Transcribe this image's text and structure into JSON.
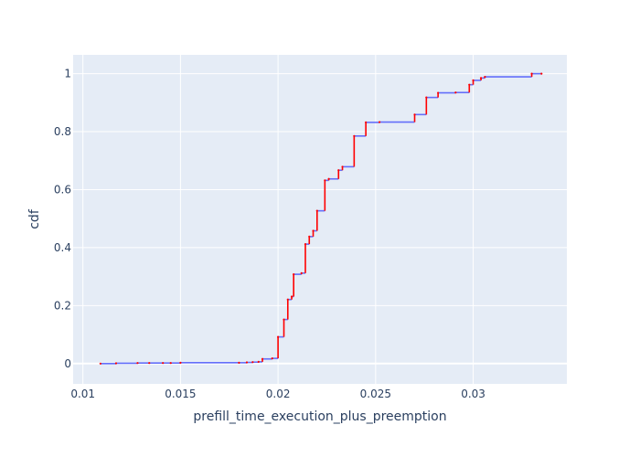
{
  "chart_data": {
    "type": "line",
    "title": "",
    "xlabel": "prefill_time_execution_plus_preemption",
    "ylabel": "cdf",
    "xlim": [
      0.0095,
      0.0348
    ],
    "ylim": [
      -0.07,
      1.065
    ],
    "x_ticks": [
      0.01,
      0.015,
      0.02,
      0.025,
      0.03
    ],
    "x_tick_labels": [
      "0.01",
      "0.015",
      "0.02",
      "0.025",
      "0.03"
    ],
    "y_ticks": [
      0,
      0.2,
      0.4,
      0.6,
      0.8,
      1
    ],
    "y_tick_labels": [
      "0",
      "0.2",
      "0.4",
      "0.6",
      "0.8",
      "1"
    ],
    "grid": true,
    "background": "#e5ecf6",
    "series": [
      {
        "line_type": "step",
        "color": "#636efa",
        "jump_color": "#ff0000",
        "x": [
          0.0109,
          0.0117,
          0.0128,
          0.0134,
          0.0141,
          0.0145,
          0.015,
          0.018,
          0.0184,
          0.0187,
          0.019,
          0.0192,
          0.0197,
          0.02,
          0.0203,
          0.0205,
          0.0207,
          0.0208,
          0.0212,
          0.0214,
          0.0216,
          0.0218,
          0.022,
          0.0224,
          0.0226,
          0.0231,
          0.0233,
          0.0239,
          0.0245,
          0.0252,
          0.027,
          0.0276,
          0.0282,
          0.0291,
          0.0298,
          0.03,
          0.0304,
          0.0306,
          0.033,
          0.0335
        ],
        "y": [
          0.0,
          0.001,
          0.002,
          0.002,
          0.002,
          0.002,
          0.003,
          0.003,
          0.004,
          0.005,
          0.006,
          0.016,
          0.018,
          0.092,
          0.152,
          0.221,
          0.231,
          0.308,
          0.312,
          0.412,
          0.438,
          0.458,
          0.527,
          0.632,
          0.637,
          0.667,
          0.679,
          0.785,
          0.832,
          0.833,
          0.859,
          0.918,
          0.934,
          0.935,
          0.962,
          0.977,
          0.985,
          0.989,
          1.0,
          1.0
        ]
      }
    ]
  }
}
